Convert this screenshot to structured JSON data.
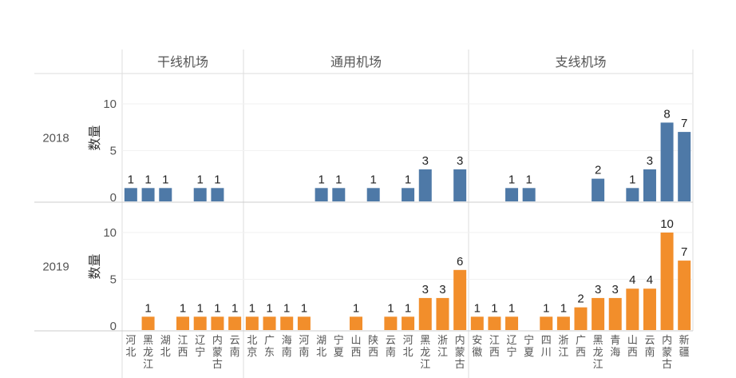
{
  "chart_data": {
    "type": "bar",
    "ylabel": "数量",
    "ylim": [
      0,
      13
    ],
    "yticks": [
      0,
      5,
      10
    ],
    "grid": true,
    "colors": {
      "2018": "#4e79a7",
      "2019": "#f28e2b"
    },
    "columns": [
      {
        "name": "干线机场",
        "categories": [
          "河北",
          "黑龙江",
          "湖北",
          "江西",
          "辽宁",
          "内蒙古",
          "云南"
        ]
      },
      {
        "name": "通用机场",
        "categories": [
          "北京",
          "广东",
          "海南",
          "河南",
          "湖北",
          "宁夏",
          "山西",
          "陕西",
          "云南",
          "河北",
          "黑龙江",
          "浙江",
          "内蒙古"
        ]
      },
      {
        "name": "支线机场",
        "categories": [
          "安徽",
          "江西",
          "辽宁",
          "宁夏",
          "四川",
          "浙江",
          "广西",
          "黑龙江",
          "青海",
          "山西",
          "云南",
          "内蒙古",
          "新疆"
        ]
      }
    ],
    "rows": [
      {
        "name": "2018",
        "values": [
          [
            1,
            1,
            1,
            null,
            1,
            1,
            null
          ],
          [
            null,
            null,
            null,
            null,
            1,
            1,
            null,
            1,
            null,
            1,
            3,
            null,
            3
          ],
          [
            null,
            null,
            1,
            1,
            null,
            null,
            null,
            2,
            null,
            1,
            3,
            8,
            7
          ]
        ]
      },
      {
        "name": "2019",
        "values": [
          [
            null,
            1,
            null,
            1,
            1,
            1,
            1
          ],
          [
            1,
            1,
            1,
            1,
            null,
            null,
            1,
            null,
            1,
            1,
            3,
            3,
            6
          ],
          [
            1,
            1,
            1,
            null,
            1,
            1,
            2,
            3,
            3,
            4,
            4,
            10,
            7
          ]
        ]
      }
    ]
  }
}
